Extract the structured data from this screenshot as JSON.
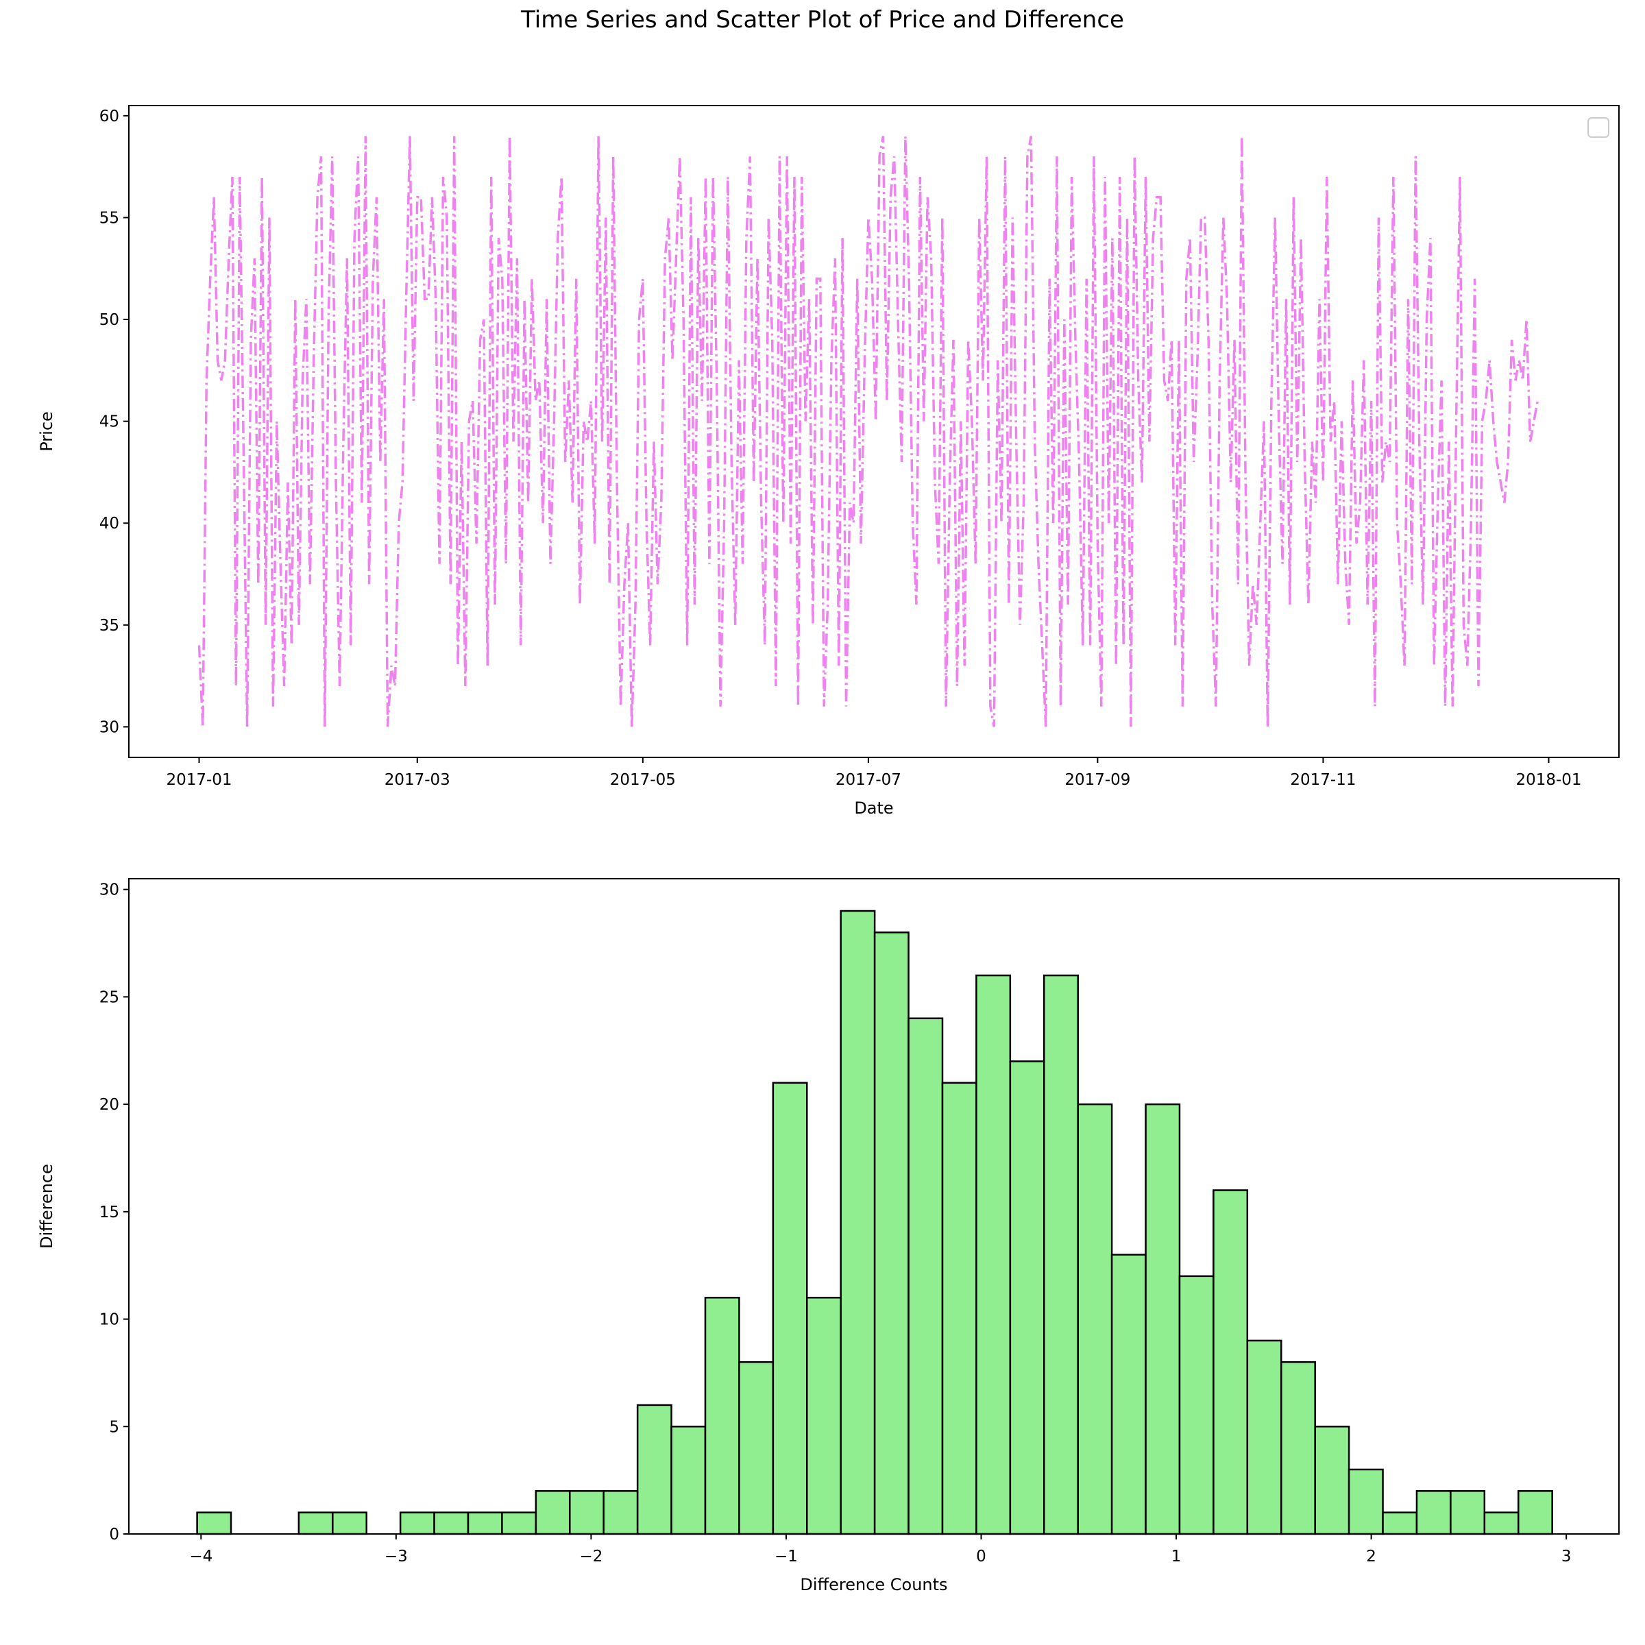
{
  "title": "Time Series and Scatter Plot of Price and Difference",
  "chart_data": [
    {
      "type": "line",
      "xlabel": "Date",
      "ylabel": "Price",
      "x_start": "2017-01-01",
      "x_frequency": "daily",
      "xlim": [
        "2016-12-13",
        "2018-01-19"
      ],
      "ylim": [
        28.5,
        60.5
      ],
      "yticks": [
        30,
        35,
        40,
        45,
        50,
        55,
        60
      ],
      "xticks": [
        "2017-01",
        "2017-03",
        "2017-05",
        "2017-07",
        "2017-09",
        "2017-11",
        "2018-01"
      ],
      "xtick_days": [
        0,
        59,
        120,
        181,
        243,
        304,
        365
      ],
      "color": "#ee82ee",
      "linestyle": "dashdot",
      "legend": "top-right (empty)",
      "values": [
        34,
        30,
        47,
        52,
        56,
        48,
        47,
        48,
        53,
        57,
        32,
        57,
        44,
        30,
        49,
        53,
        37,
        57,
        35,
        55,
        31,
        45,
        38,
        32,
        42,
        34,
        51,
        35,
        47,
        51,
        37,
        48,
        56,
        58,
        30,
        50,
        58,
        42,
        32,
        44,
        53,
        34,
        54,
        58,
        41,
        59,
        37,
        52,
        56,
        43,
        51,
        30,
        33,
        32,
        40,
        42,
        51,
        59,
        46,
        56,
        56,
        51,
        51,
        56,
        51,
        38,
        57,
        55,
        37,
        59,
        33,
        44,
        32,
        45,
        46,
        39,
        49,
        50,
        33,
        57,
        36,
        54,
        52,
        38,
        59,
        44,
        53,
        34,
        51,
        41,
        52,
        46,
        47,
        40,
        51,
        38,
        45,
        54,
        57,
        43,
        47,
        41,
        52,
        36,
        45,
        44,
        46,
        39,
        59,
        44,
        55,
        37,
        58,
        42,
        31,
        37,
        40,
        30,
        36,
        50,
        52,
        40,
        34,
        44,
        37,
        41,
        53,
        55,
        48,
        53,
        58,
        50,
        34,
        56,
        36,
        54,
        46,
        57,
        38,
        57,
        47,
        31,
        40,
        57,
        43,
        35,
        48,
        38,
        54,
        58,
        42,
        53,
        41,
        34,
        55,
        49,
        32,
        58,
        40,
        58,
        39,
        57,
        31,
        57,
        45,
        51,
        35,
        52,
        52,
        31,
        36,
        48,
        53,
        33,
        54,
        31,
        41,
        40,
        52,
        39,
        48,
        55,
        52,
        45,
        58,
        59,
        46,
        56,
        58,
        50,
        43,
        59,
        52,
        40,
        36,
        57,
        45,
        56,
        53,
        42,
        38,
        55,
        31,
        42,
        49,
        32,
        45,
        33,
        49,
        45,
        38,
        55,
        47,
        58,
        31,
        30,
        48,
        40,
        58,
        36,
        55,
        44,
        35,
        41,
        58,
        59,
        44,
        38,
        34,
        30,
        52,
        40,
        58,
        31,
        50,
        36,
        57,
        49,
        43,
        34,
        52,
        34,
        58,
        39,
        31,
        57,
        40,
        54,
        33,
        57,
        34,
        55,
        30,
        58,
        47,
        42,
        57,
        44,
        54,
        56,
        56,
        47,
        46,
        49,
        34,
        49,
        31,
        52,
        54,
        43,
        48,
        55,
        55,
        49,
        36,
        31,
        47,
        55,
        51,
        42,
        49,
        37,
        59,
        42,
        33,
        37,
        35,
        40,
        45,
        30,
        46,
        55,
        45,
        38,
        51,
        36,
        56,
        43,
        54,
        43,
        36,
        44,
        41,
        51,
        42,
        57,
        44,
        46,
        37,
        45,
        38,
        35,
        47,
        39,
        41,
        48,
        36,
        46,
        31,
        55,
        42,
        44,
        43,
        57,
        40,
        37,
        33,
        51,
        37,
        58,
        44,
        36,
        50,
        54,
        33,
        41,
        47,
        31,
        44,
        31,
        45,
        57,
        35,
        33,
        40,
        52,
        32,
        45,
        46,
        48,
        45,
        43,
        42,
        41,
        43,
        49,
        47,
        48,
        47,
        50,
        44,
        45,
        46
      ],
      "note": "series values approximated from the plotted line"
    },
    {
      "type": "bar",
      "subtype": "histogram",
      "xlabel": "Difference Counts",
      "ylabel": "Difference",
      "bin_start": -4.02,
      "bin_width": 0.1737,
      "xlim": [
        -4.37,
        3.27
      ],
      "ylim": [
        0,
        30.5
      ],
      "xticks": [
        -4,
        -3,
        -2,
        -1,
        0,
        1,
        2,
        3
      ],
      "xtick_labels": [
        "−4",
        "−3",
        "−2",
        "−1",
        "0",
        "1",
        "2",
        "3"
      ],
      "yticks": [
        0,
        5,
        10,
        15,
        20,
        25,
        30
      ],
      "color": "#90ee90",
      "edgecolor": "#000000",
      "values": [
        1,
        0,
        0,
        1,
        1,
        0,
        1,
        1,
        1,
        1,
        2,
        2,
        2,
        6,
        5,
        11,
        8,
        21,
        11,
        29,
        28,
        24,
        21,
        26,
        22,
        26,
        20,
        13,
        20,
        12,
        16,
        9,
        8,
        5,
        3,
        1,
        2,
        2,
        1,
        2
      ]
    }
  ]
}
